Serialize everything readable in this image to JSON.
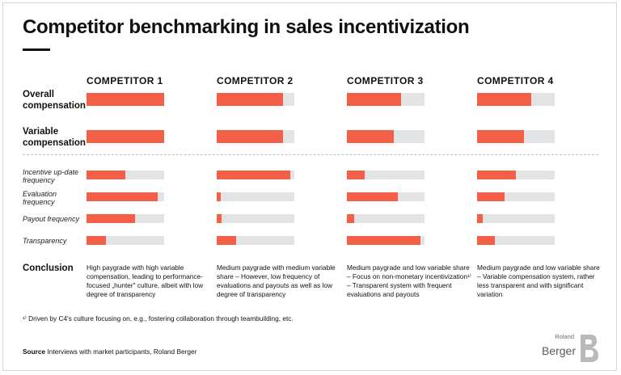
{
  "title": "Competitor benchmarking in sales incentivization",
  "chart_data": {
    "type": "bar",
    "orientation": "horizontal",
    "value_range": [
      0,
      100
    ],
    "competitors": [
      "COMPETITOR 1",
      "COMPETITOR 2",
      "COMPETITOR 3",
      "COMPETITOR 4"
    ],
    "criteria": [
      {
        "key": "overall",
        "label": "Overall compensation",
        "values": [
          100,
          85,
          70,
          70
        ]
      },
      {
        "key": "variable",
        "label": "Variable compensation",
        "values": [
          100,
          85,
          60,
          60
        ]
      },
      {
        "key": "update_freq",
        "label": "Incentive up-date frequency",
        "values": [
          50,
          95,
          23,
          50
        ]
      },
      {
        "key": "eval_freq",
        "label": "Evaluation frequency",
        "values": [
          92,
          5,
          66,
          35
        ]
      },
      {
        "key": "payout_freq",
        "label": "Payout frequency",
        "values": [
          63,
          6,
          9,
          7
        ]
      },
      {
        "key": "transparency",
        "label": "Transparency",
        "values": [
          25,
          25,
          95,
          23
        ]
      }
    ]
  },
  "labels": {
    "overall_1": "Overall",
    "overall_2": "compensation",
    "variable_1": "Variable",
    "variable_2": "compensation",
    "update_1": "Incentive up-date",
    "update_2": "frequency",
    "eval_1": "Evaluation",
    "eval_2": "frequency",
    "payout": "Payout frequency",
    "transparency": "Transparency"
  },
  "conclusion": {
    "label": "Conclusion",
    "texts": [
      "High paygrade with high variable compensation, leading to performance-focused „hunter\" culture, albeit with low degree of transparency",
      "Medium paygrade with medium variable share – However, low frequency of evaluations and payouts as well as low degree of transparency",
      "Medium paygrade and low variable share – Focus on non-monetary incentivization¹⁾ – Transparent system with frequent evaluations and payouts",
      "Medium paygrade and low variable share – Variable compensation system, rather less transparent and with significant variation"
    ]
  },
  "footnote": "¹⁾ Driven by C4's culture focusing on, e.g., fostering collaboration through teambuilding, etc.",
  "source": {
    "label": "Source",
    "text": "Interviews with market participants, Roland Berger"
  },
  "brand": {
    "line1": "Roland",
    "line2": "Berger"
  },
  "colors": {
    "accent": "#f45f48",
    "track": "#e1e3e5"
  }
}
